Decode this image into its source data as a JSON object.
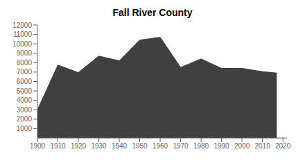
{
  "chart_data": {
    "type": "area",
    "title": "Fall River County",
    "x": [
      1900,
      1910,
      1920,
      1930,
      1940,
      1950,
      1960,
      1970,
      1980,
      1990,
      2000,
      2010,
      2017
    ],
    "values": [
      3000,
      7750,
      6950,
      8700,
      8200,
      10400,
      10700,
      7500,
      8400,
      7400,
      7400,
      7050,
      6900
    ],
    "color": "#404040",
    "xlim": [
      1900,
      2022
    ],
    "ylim": [
      0,
      12000
    ],
    "xticks": [
      1900,
      1910,
      1920,
      1930,
      1940,
      1950,
      1960,
      1970,
      1980,
      1990,
      2000,
      2010,
      2020
    ],
    "yticks": [
      1000,
      2000,
      3000,
      4000,
      5000,
      6000,
      7000,
      8000,
      9000,
      10000,
      11000,
      12000
    ],
    "grid": false
  }
}
